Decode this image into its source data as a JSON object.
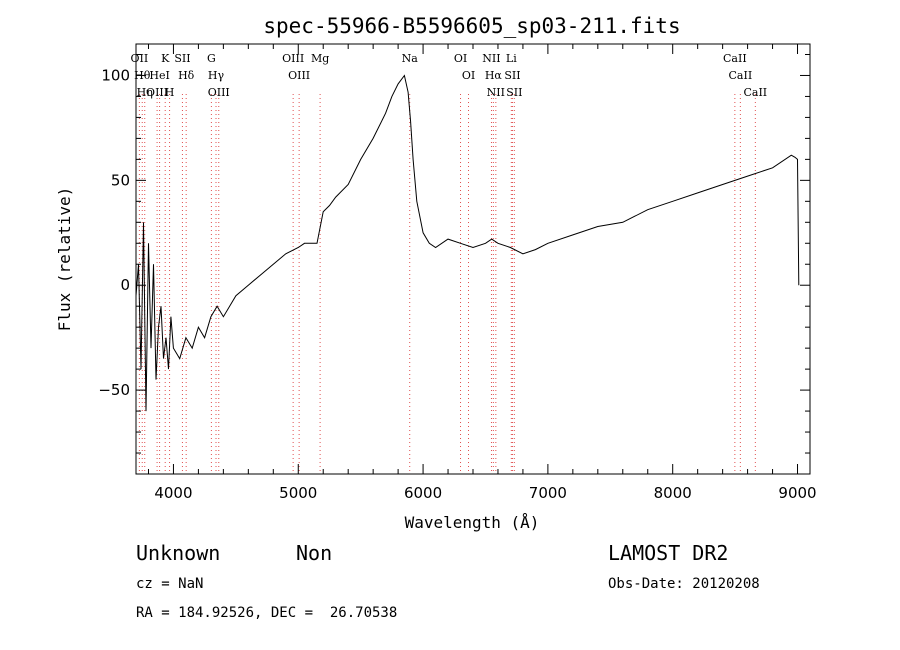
{
  "chart_data": {
    "type": "line",
    "title": "spec-55966-B5596605_sp03-211.fits",
    "xlabel": "Wavelength (Å)",
    "ylabel": "Flux (relative)",
    "xlim": [
      3700,
      9100
    ],
    "ylim": [
      -90,
      115
    ],
    "xticks": [
      4000,
      5000,
      6000,
      7000,
      8000,
      9000
    ],
    "yticks": [
      -50,
      0,
      50,
      100
    ],
    "grid": false,
    "series": [
      {
        "x": [
          3700,
          3720,
          3740,
          3760,
          3780,
          3800,
          3820,
          3840,
          3860,
          3880,
          3900,
          3920,
          3940,
          3960,
          3980,
          4000,
          4050,
          4100,
          4150,
          4200,
          4250,
          4300,
          4350,
          4400,
          4500,
          4600,
          4700,
          4800,
          4900,
          5000,
          5050,
          5100,
          5150,
          5200,
          5250,
          5300,
          5400,
          5500,
          5600,
          5700,
          5750,
          5800,
          5850,
          5880,
          5900,
          5920,
          5950,
          6000,
          6050,
          6100,
          6200,
          6300,
          6400,
          6500,
          6550,
          6600,
          6700,
          6800,
          6900,
          7000,
          7200,
          7400,
          7600,
          7800,
          8000,
          8200,
          8400,
          8600,
          8800,
          8950,
          8980,
          9000,
          9010
        ],
        "values": [
          -5,
          10,
          -40,
          30,
          -60,
          20,
          -30,
          10,
          -45,
          -20,
          -10,
          -35,
          -25,
          -40,
          -15,
          -30,
          -35,
          -25,
          -30,
          -20,
          -25,
          -15,
          -10,
          -15,
          -5,
          0,
          5,
          10,
          15,
          18,
          20,
          20,
          20,
          35,
          38,
          42,
          48,
          60,
          70,
          82,
          90,
          96,
          100,
          92,
          78,
          60,
          40,
          25,
          20,
          18,
          22,
          20,
          18,
          20,
          22,
          20,
          18,
          15,
          17,
          20,
          24,
          28,
          30,
          36,
          40,
          44,
          48,
          52,
          56,
          62,
          61,
          60,
          0
        ]
      }
    ],
    "line_markers": [
      {
        "x": 3727,
        "label": "OII"
      },
      {
        "x": 3750,
        "label": "Hθ"
      },
      {
        "x": 3770,
        "label": "Hη"
      },
      {
        "x": 3869,
        "label": "OIII"
      },
      {
        "x": 3889,
        "label": "HeI"
      },
      {
        "x": 3934,
        "label": "K"
      },
      {
        "x": 3969,
        "label": "H"
      },
      {
        "x": 4072,
        "label": "SII"
      },
      {
        "x": 4102,
        "label": "Hδ"
      },
      {
        "x": 4304,
        "label": "G"
      },
      {
        "x": 4341,
        "label": "Hγ"
      },
      {
        "x": 4363,
        "label": "OIII"
      },
      {
        "x": 4959,
        "label": "OIII"
      },
      {
        "x": 5007,
        "label": "OIII"
      },
      {
        "x": 5175,
        "label": "Mg"
      },
      {
        "x": 5893,
        "label": "Na"
      },
      {
        "x": 6300,
        "label": "OI"
      },
      {
        "x": 6364,
        "label": "OI"
      },
      {
        "x": 6548,
        "label": "NII"
      },
      {
        "x": 6563,
        "label": "Hα"
      },
      {
        "x": 6583,
        "label": "NII"
      },
      {
        "x": 6707,
        "label": "Li"
      },
      {
        "x": 6716,
        "label": "SII"
      },
      {
        "x": 6731,
        "label": "SII"
      },
      {
        "x": 8498,
        "label": "CaII"
      },
      {
        "x": 8542,
        "label": "CaII"
      },
      {
        "x": 8662,
        "label": "CaII"
      }
    ]
  },
  "info": {
    "class": "Unknown",
    "subclass": "Non",
    "survey": "LAMOST DR2",
    "cz": "cz = NaN",
    "obs_date": "Obs-Date: 20120208",
    "radec": "RA = 184.92526, DEC =  26.70538"
  },
  "colors": {
    "spectrum": "#000000",
    "marker": "#e05050"
  }
}
